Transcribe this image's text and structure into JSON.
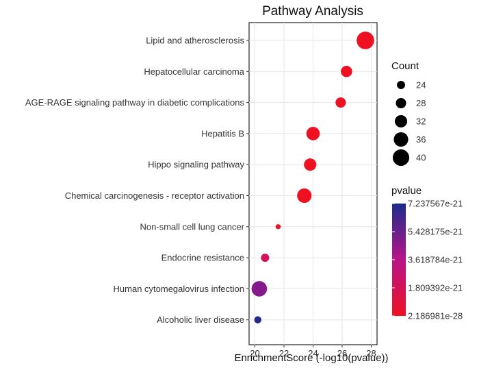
{
  "chart_data": {
    "type": "scatter",
    "title": "Pathway Analysis",
    "xlabel": "EnrichmentScore (-log10(pvalue))",
    "ylabel": "",
    "xlim": [
      19.6,
      28.4
    ],
    "xticks": [
      20,
      22,
      24,
      26,
      28
    ],
    "grid": true,
    "points": [
      {
        "pathway": "Lipid and atherosclerosis",
        "x": 27.6,
        "count": 42,
        "pvalue": 2.5e-28
      },
      {
        "pathway": "Hepatocellular carcinoma",
        "x": 26.3,
        "count": 30,
        "pvalue": 5e-27
      },
      {
        "pathway": "AGE-RAGE signaling pathway in diabetic complications",
        "x": 25.9,
        "count": 28,
        "pvalue": 1.3e-26
      },
      {
        "pathway": "Hepatitis B",
        "x": 24.0,
        "count": 34,
        "pvalue": 1e-24
      },
      {
        "pathway": "Hippo signaling pathway",
        "x": 23.8,
        "count": 32,
        "pvalue": 1.6e-24
      },
      {
        "pathway": "Chemical carcinogenesis - receptor activation",
        "x": 23.4,
        "count": 36,
        "pvalue": 4e-24
      },
      {
        "pathway": "Non-small cell lung cancer",
        "x": 21.6,
        "count": 18,
        "pvalue": 2.5e-22
      },
      {
        "pathway": "Endocrine resistance",
        "x": 20.7,
        "count": 24,
        "pvalue": 2e-21
      },
      {
        "pathway": "Human cytomegalovirus infection",
        "x": 20.3,
        "count": 38,
        "pvalue": 4.8e-21
      },
      {
        "pathway": "Alcoholic liver disease",
        "x": 20.2,
        "count": 22,
        "pvalue": 7e-21
      }
    ],
    "size_legend": {
      "title": "Count",
      "values": [
        24,
        28,
        32,
        36,
        40
      ]
    },
    "color_legend": {
      "title": "pvalue",
      "min": 2.186981e-28,
      "max": 7.237567e-21,
      "labels": [
        "7.237567e-21",
        "5.428175e-21",
        "3.618784e-21",
        "1.809392e-21",
        "2.186981e-28"
      ],
      "label_values": [
        7.237567e-21,
        5.428175e-21,
        3.618784e-21,
        1.809392e-21,
        2.186981e-28
      ],
      "low_color": "#ee1122",
      "mid_color": "#b8148a",
      "high_color": "#1c2a8c"
    }
  }
}
